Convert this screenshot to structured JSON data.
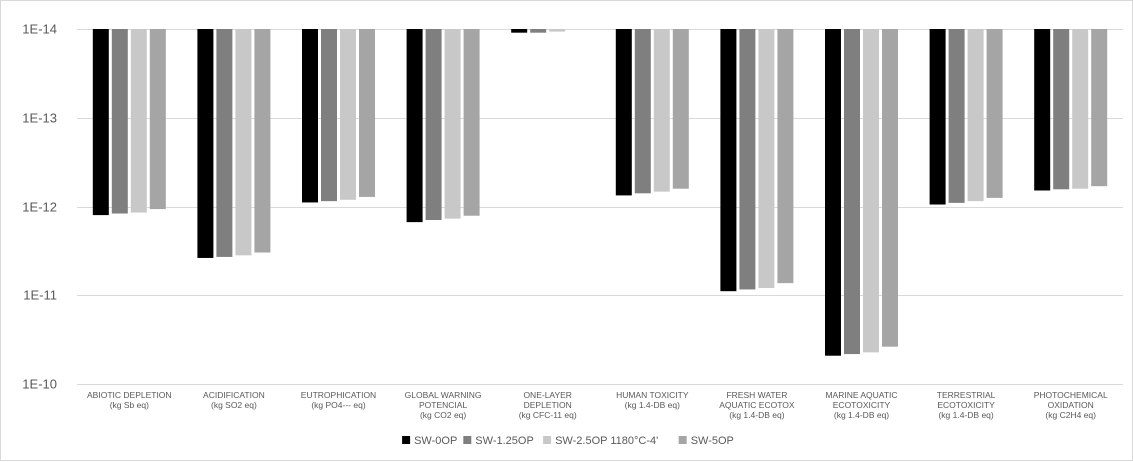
{
  "chart_data": {
    "type": "bar",
    "title": "",
    "xlabel": "",
    "ylabel": "",
    "y_axis": {
      "scale": "log",
      "reversed": true,
      "min": 1e-14,
      "max": 1e-10,
      "tick_values": [
        1e-14,
        1e-13,
        1e-12,
        1e-11,
        1e-10
      ],
      "tick_labels": [
        "1E-14",
        "1E-13",
        "1E-12",
        "1E-11",
        "1E-10"
      ],
      "grid": true
    },
    "categories": [
      [
        "ABIOTIC DEPLETION",
        "(kg Sb eq)"
      ],
      [
        "ACIDIFICATION",
        "(kg SO2 eq)"
      ],
      [
        "EUTROPHICATION",
        "(kg PO4--- eq)"
      ],
      [
        "GLOBAL WARNING",
        "POTENCIAL",
        "(kg CO2 eq)"
      ],
      [
        "ONE-LAYER",
        "DEPLETION",
        "(kg CFC-11 eq)"
      ],
      [
        "HUMAN TOXICITY",
        "(kg 1.4-DB eq)"
      ],
      [
        "FRESH WATER",
        "AQUATIC ECOTOX",
        "(kg 1.4-DB eq)"
      ],
      [
        "MARINE AQUATIC",
        "ECOTOXICITY",
        "(kg 1.4-DB eq)"
      ],
      [
        "TERRESTRIAL",
        "ECOTOXICITY",
        "(kg 1.4-DB eq)"
      ],
      [
        "PHOTOCHEMICAL",
        "OXIDATION",
        "(kg C2H4 eq)"
      ]
    ],
    "series": [
      {
        "name": "SW-0OP",
        "color": "#000000",
        "values": [
          1.25e-12,
          3.8e-12,
          9e-13,
          1.5e-12,
          1.1e-14,
          7.5e-13,
          9e-12,
          4.8e-11,
          9.5e-13,
          6.6e-13
        ]
      },
      {
        "name": "SW-1.25OP",
        "color": "#7f7f7f",
        "values": [
          1.2e-12,
          3.7e-12,
          8.7e-13,
          1.42e-12,
          1.1e-14,
          7.1e-13,
          8.6e-12,
          4.6e-11,
          9.1e-13,
          6.4e-13
        ]
      },
      {
        "name": "SW-2.5OP 1180°C-4'",
        "color": "#c8c8c8",
        "values": [
          1.17e-12,
          3.55e-12,
          8.4e-13,
          1.37e-12,
          1.07e-14,
          6.8e-13,
          8.3e-12,
          4.4e-11,
          8.7e-13,
          6.3e-13
        ]
      },
      {
        "name": "SW-5OP",
        "color": "#a5a5a5",
        "values": [
          1.07e-12,
          3.3e-12,
          7.8e-13,
          1.27e-12,
          1e-14,
          6.3e-13,
          7.3e-12,
          3.8e-11,
          8e-13,
          5.9e-13
        ]
      }
    ],
    "legend": {
      "position": "bottom"
    }
  }
}
